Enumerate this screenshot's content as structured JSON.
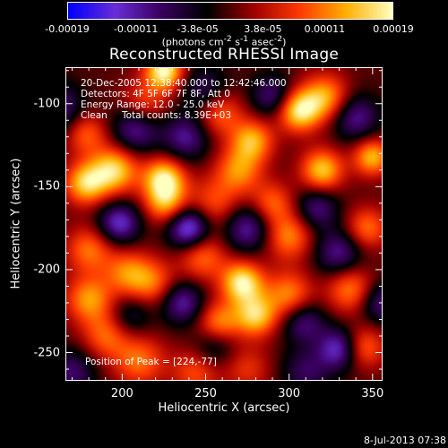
{
  "colorbar": {
    "ticks": [
      {
        "label": "-0.00019",
        "value": -0.00019
      },
      {
        "label": "-0.00011",
        "value": -0.00011
      },
      {
        "label": "-3.8e-05",
        "value": -3.8e-05
      },
      {
        "label": "3.8e-05",
        "value": 3.8e-05
      },
      {
        "label": "0.00011",
        "value": 0.00011
      },
      {
        "label": "0.00019",
        "value": 0.00019
      }
    ],
    "range": [
      -0.00019,
      0.00019
    ],
    "units_prefix": "(photons cm",
    "units_sup1": "-2",
    "units_mid": " s",
    "units_sup2": "-1",
    "units_mid2": " asec",
    "units_sup3": "-2",
    "units_suffix": ")"
  },
  "chart_data": {
    "type": "heatmap",
    "title": "Reconstructed RHESSI Image",
    "xlabel": "Heliocentric X (arcsec)",
    "ylabel": "Heliocentric Y (arcsec)",
    "xlim": [
      166,
      356
    ],
    "ylim": [
      -267,
      -78
    ],
    "x_ticks": [
      200,
      250,
      300,
      350
    ],
    "y_ticks": [
      -100,
      -150,
      -200,
      -250
    ],
    "peak": [
      224,
      -77
    ],
    "colormap": [
      "#0000ff",
      "#6a2ed8",
      "#3a0060",
      "#000000",
      "#a00000",
      "#ff3a00",
      "#ffb000",
      "#ffffc0"
    ],
    "blobs": [
      {
        "x": 225,
        "y": -80,
        "a": 1.0,
        "s": 8
      },
      {
        "x": 213,
        "y": -100,
        "a": 0.45,
        "s": 10
      },
      {
        "x": 258,
        "y": -105,
        "a": 0.55,
        "s": 10
      },
      {
        "x": 178,
        "y": -118,
        "a": 0.5,
        "s": 9
      },
      {
        "x": 195,
        "y": -140,
        "a": 0.85,
        "s": 10
      },
      {
        "x": 178,
        "y": -148,
        "a": 0.8,
        "s": 9
      },
      {
        "x": 225,
        "y": -145,
        "a": 0.9,
        "s": 9
      },
      {
        "x": 226,
        "y": -160,
        "a": 0.65,
        "s": 9
      },
      {
        "x": 255,
        "y": -160,
        "a": 0.45,
        "s": 11
      },
      {
        "x": 270,
        "y": -140,
        "a": 0.6,
        "s": 10
      },
      {
        "x": 278,
        "y": -122,
        "a": 0.7,
        "s": 9
      },
      {
        "x": 306,
        "y": -104,
        "a": 0.9,
        "s": 9
      },
      {
        "x": 322,
        "y": -96,
        "a": 0.7,
        "s": 10
      },
      {
        "x": 320,
        "y": -140,
        "a": 0.8,
        "s": 9
      },
      {
        "x": 350,
        "y": -132,
        "a": 0.75,
        "s": 8
      },
      {
        "x": 347,
        "y": -175,
        "a": 0.55,
        "s": 9
      },
      {
        "x": 300,
        "y": -180,
        "a": 0.6,
        "s": 10
      },
      {
        "x": 290,
        "y": -160,
        "a": 0.5,
        "s": 9
      },
      {
        "x": 180,
        "y": -188,
        "a": 0.55,
        "s": 10
      },
      {
        "x": 180,
        "y": -218,
        "a": 0.65,
        "s": 10
      },
      {
        "x": 203,
        "y": -202,
        "a": 0.55,
        "s": 10
      },
      {
        "x": 218,
        "y": -208,
        "a": 0.5,
        "s": 10
      },
      {
        "x": 248,
        "y": -192,
        "a": 0.55,
        "s": 10
      },
      {
        "x": 272,
        "y": -208,
        "a": 0.95,
        "s": 9
      },
      {
        "x": 280,
        "y": -228,
        "a": 0.8,
        "s": 9
      },
      {
        "x": 258,
        "y": -232,
        "a": 0.6,
        "s": 9
      },
      {
        "x": 300,
        "y": -215,
        "a": 0.6,
        "s": 10
      },
      {
        "x": 337,
        "y": -212,
        "a": 0.6,
        "s": 10
      },
      {
        "x": 345,
        "y": -247,
        "a": 0.55,
        "s": 9
      },
      {
        "x": 210,
        "y": -255,
        "a": 0.55,
        "s": 11
      },
      {
        "x": 190,
        "y": -240,
        "a": 0.5,
        "s": 10
      },
      {
        "x": 244,
        "y": -262,
        "a": 0.45,
        "s": 10
      },
      {
        "x": 275,
        "y": -260,
        "a": 0.35,
        "s": 10
      },
      {
        "x": 160,
        "y": -103,
        "a": -0.55,
        "s": 11
      },
      {
        "x": 208,
        "y": -115,
        "a": -0.6,
        "s": 10
      },
      {
        "x": 238,
        "y": -120,
        "a": -0.55,
        "s": 10
      },
      {
        "x": 250,
        "y": -92,
        "a": -0.45,
        "s": 10
      },
      {
        "x": 290,
        "y": -95,
        "a": -0.5,
        "s": 9
      },
      {
        "x": 340,
        "y": -108,
        "a": -0.55,
        "s": 10
      },
      {
        "x": 198,
        "y": -172,
        "a": -0.7,
        "s": 9
      },
      {
        "x": 240,
        "y": -175,
        "a": -0.9,
        "s": 9
      },
      {
        "x": 275,
        "y": -175,
        "a": -0.6,
        "s": 10
      },
      {
        "x": 317,
        "y": -163,
        "a": -0.5,
        "s": 9
      },
      {
        "x": 330,
        "y": -190,
        "a": -0.55,
        "s": 10
      },
      {
        "x": 236,
        "y": -220,
        "a": -0.6,
        "s": 9
      },
      {
        "x": 205,
        "y": -228,
        "a": -0.35,
        "s": 9
      },
      {
        "x": 309,
        "y": -232,
        "a": -0.5,
        "s": 9
      },
      {
        "x": 330,
        "y": -248,
        "a": -0.7,
        "s": 9
      },
      {
        "x": 355,
        "y": -220,
        "a": -0.5,
        "s": 9
      },
      {
        "x": 255,
        "y": -247,
        "a": -0.35,
        "s": 9
      },
      {
        "x": 170,
        "y": -262,
        "a": -0.45,
        "s": 10
      },
      {
        "x": 310,
        "y": -262,
        "a": -0.4,
        "s": 10
      }
    ]
  },
  "annotations": {
    "time_range": "20-Dec-2005 12:38:40.000 to 12:42:46.000",
    "detectors": "Detectors: 4F 5F 6F 7F 8F, Att 0",
    "energy": "Energy Range: 12.0 - 25.0 keV",
    "clean_label": "Clean",
    "total_counts": "Total counts: 8.39E+03",
    "peak_position": "Position of Peak = [224,-77]"
  },
  "timestamp": "8-Jul-2013 07:38",
  "colors": {
    "background": "#000000",
    "foreground": "#ffffff"
  }
}
